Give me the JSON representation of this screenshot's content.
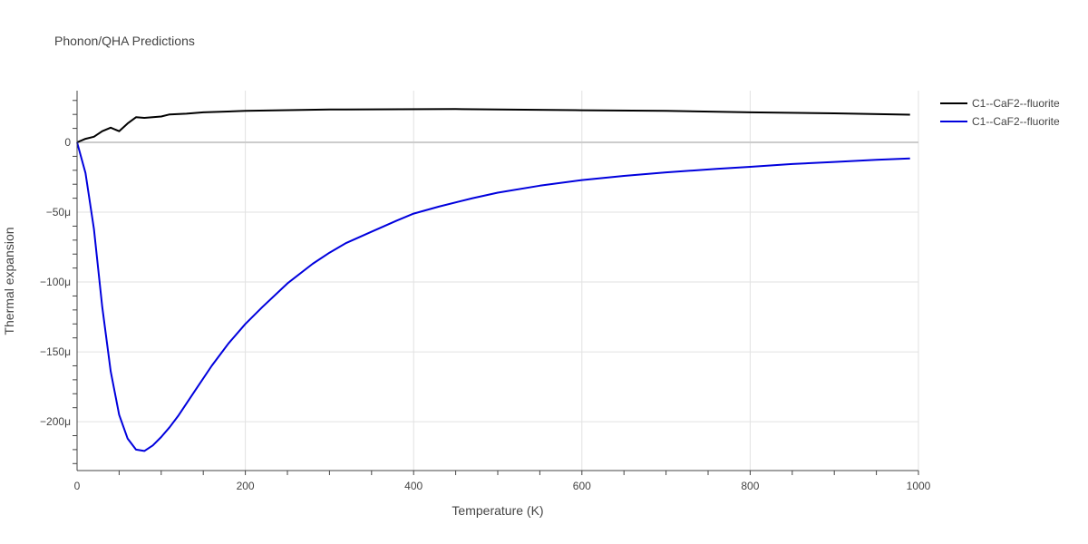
{
  "chart_data": {
    "type": "line",
    "title": "Phonon/QHA Predictions",
    "xlabel": "Temperature (K)",
    "ylabel": "Thermal expansion",
    "xlim": [
      0,
      1000
    ],
    "ylim": [
      -235,
      37
    ],
    "x_ticks": [
      0,
      200,
      400,
      600,
      800,
      1000
    ],
    "x_tick_labels": [
      "0",
      "200",
      "400",
      "600",
      "800",
      "1000"
    ],
    "y_ticks": [
      0,
      -50,
      -100,
      -150,
      -200
    ],
    "y_tick_labels": [
      "0",
      "−50μ",
      "−100μ",
      "−150μ",
      "−200μ"
    ],
    "grid": true,
    "legend_position": "top-right",
    "series": [
      {
        "name": "C1--CaF2--fluorite",
        "color": "#000000",
        "x": [
          0,
          10,
          20,
          30,
          40,
          50,
          60,
          70,
          80,
          90,
          100,
          110,
          130,
          150,
          200,
          300,
          450,
          600,
          700,
          800,
          900,
          990
        ],
        "y": [
          0,
          2.5,
          4,
          8,
          10.5,
          8,
          13.5,
          18,
          17.5,
          18,
          18.5,
          20,
          20.5,
          21.5,
          22.5,
          23.5,
          23.8,
          23,
          22.5,
          21.5,
          20.8,
          19.8
        ]
      },
      {
        "name": "C1--CaF2--fluorite",
        "color": "#0000dd",
        "x": [
          0,
          10,
          20,
          30,
          40,
          50,
          60,
          70,
          80,
          90,
          100,
          110,
          120,
          140,
          160,
          180,
          200,
          220,
          250,
          280,
          300,
          320,
          350,
          380,
          400,
          430,
          470,
          500,
          550,
          600,
          650,
          700,
          760,
          800,
          850,
          900,
          950,
          990
        ],
        "y": [
          0,
          -22,
          -62,
          -118,
          -164,
          -195,
          -212,
          -220,
          -221,
          -217,
          -211,
          -204,
          -196,
          -178,
          -160,
          -144,
          -130,
          -118,
          -101,
          -87,
          -79,
          -72,
          -64,
          -56,
          -51,
          -46,
          -40,
          -36,
          -31,
          -27,
          -24,
          -21.5,
          -19,
          -17.5,
          -15.5,
          -14,
          -12.5,
          -11.5
        ]
      }
    ]
  }
}
